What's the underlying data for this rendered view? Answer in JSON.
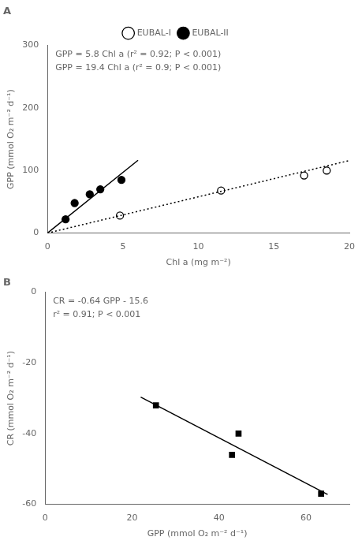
{
  "chart_data": [
    {
      "type": "scatter",
      "title": "A",
      "xlabel": "Chl a (mg m⁻²)",
      "ylabel": "GPP (mmol O₂ m⁻² d⁻¹)",
      "xlim": [
        0,
        20
      ],
      "ylim": [
        0,
        300
      ],
      "xticks": [
        0,
        5,
        10,
        15,
        20
      ],
      "yticks": [
        0,
        100,
        200,
        300
      ],
      "grid": false,
      "legend": "top",
      "annotations": [
        "GPP = 5.8 Chl a (r² = 0.92; P < 0.001)",
        "GPP = 19.4 Chl a (r² = 0.9; P < 0.001)"
      ],
      "series": [
        {
          "name": "EUBAL-I",
          "type": "scatter",
          "marker": "open_circle",
          "color": "#000000",
          "x": [
            4.8,
            11.5,
            17.0,
            18.5
          ],
          "values": [
            28,
            68,
            92,
            100
          ]
        },
        {
          "name": "EUBAL-II",
          "type": "scatter",
          "marker": "circle",
          "color": "#000000",
          "x": [
            1.2,
            1.8,
            2.8,
            3.5,
            4.9
          ],
          "values": [
            22,
            48,
            62,
            70,
            85
          ]
        },
        {
          "type": "line",
          "line_style": "dotted",
          "color": "#000000",
          "x": [
            0,
            20
          ],
          "values": [
            0,
            116
          ]
        },
        {
          "type": "line",
          "line_style": "solid",
          "color": "#000000",
          "x": [
            0,
            6.0
          ],
          "values": [
            0,
            116.4
          ]
        }
      ]
    },
    {
      "type": "scatter",
      "title": "B",
      "xlabel": "GPP (mmol O₂ m⁻² d⁻¹)",
      "ylabel": "CR (mmol O₂ m⁻² d⁻¹)",
      "xlim": [
        0,
        70
      ],
      "ylim": [
        -60,
        0
      ],
      "xticks": [
        0,
        20,
        40,
        60
      ],
      "yticks": [
        0,
        -20,
        -40,
        -60
      ],
      "grid": false,
      "annotations": [
        "CR = -0.64 GPP - 15.6",
        "r² = 0.91; P < 0.001"
      ],
      "series": [
        {
          "type": "scatter",
          "marker": "square",
          "color": "#000000",
          "x": [
            25.5,
            43.0,
            44.5,
            63.5
          ],
          "values": [
            -32,
            -46,
            -40,
            -57
          ]
        },
        {
          "type": "line",
          "line_style": "solid",
          "color": "#000000",
          "x": [
            22,
            65
          ],
          "values": [
            -29.68,
            -57.2
          ]
        }
      ]
    }
  ]
}
